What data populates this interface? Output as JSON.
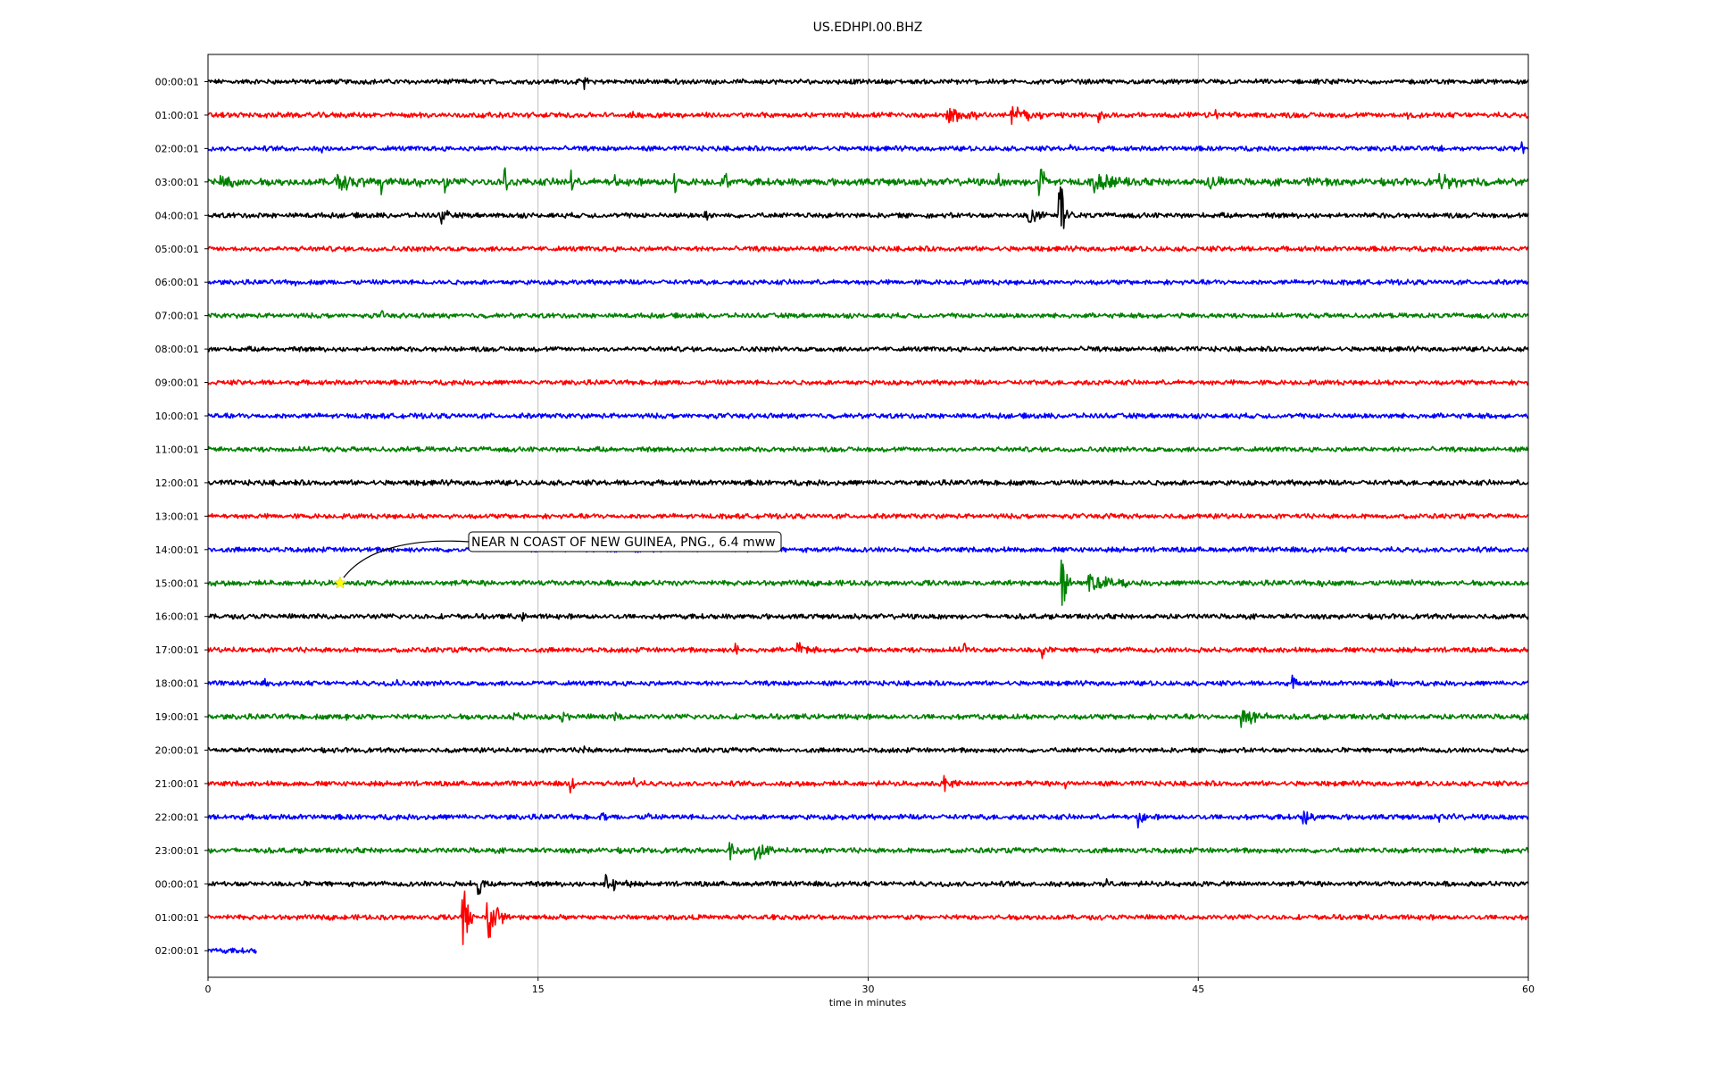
{
  "chart_data": {
    "type": "line",
    "title": "US.EDHPI.00.BHZ",
    "xlabel": "time in minutes",
    "ylabel": "",
    "xlim": [
      0,
      60
    ],
    "xticks": [
      {
        "value": 0,
        "label": "0"
      },
      {
        "value": 15,
        "label": "15"
      },
      {
        "value": 30,
        "label": "30"
      },
      {
        "value": 45,
        "label": "45"
      },
      {
        "value": 60,
        "label": "60"
      }
    ],
    "grid": "vertical",
    "legend": "none",
    "series": [
      {
        "label": "00:00:01",
        "color": "#000000",
        "end_minute": 60,
        "noise": 2.2,
        "events": [
          {
            "t": 17.1,
            "amp": 12,
            "dur": 0.3
          }
        ]
      },
      {
        "label": "01:00:01",
        "color": "#ff0000",
        "end_minute": 60,
        "noise": 2.4,
        "events": [
          {
            "t": 33.5,
            "amp": 10,
            "dur": 2.0
          },
          {
            "t": 36.5,
            "amp": 10,
            "dur": 1.6
          },
          {
            "t": 40.5,
            "amp": 9,
            "dur": 0.4
          },
          {
            "t": 45.7,
            "amp": 7,
            "dur": 0.3
          },
          {
            "t": 19.2,
            "amp": 4,
            "dur": 0.2
          },
          {
            "t": 54.5,
            "amp": 4,
            "dur": 0.2
          }
        ]
      },
      {
        "label": "02:00:01",
        "color": "#0000ff",
        "end_minute": 60,
        "noise": 2.2,
        "events": [
          {
            "t": 5.2,
            "amp": 5,
            "dur": 0.3
          },
          {
            "t": 39.2,
            "amp": 4,
            "dur": 0.2
          },
          {
            "t": 56.0,
            "amp": 4,
            "dur": 0.5
          },
          {
            "t": 59.7,
            "amp": 9,
            "dur": 0.3
          }
        ]
      },
      {
        "label": "03:00:01",
        "color": "#008000",
        "end_minute": 60,
        "noise": 3.2,
        "events": [
          {
            "t": 0.6,
            "amp": 9,
            "dur": 1.4
          },
          {
            "t": 5.8,
            "amp": 10,
            "dur": 2.4
          },
          {
            "t": 7.9,
            "amp": 14,
            "dur": 0.3
          },
          {
            "t": 9.5,
            "amp": 24,
            "dur": 0.1
          },
          {
            "t": 10.8,
            "amp": 22,
            "dur": 0.1
          },
          {
            "t": 13.5,
            "amp": 20,
            "dur": 0.1
          },
          {
            "t": 16.5,
            "amp": 22,
            "dur": 0.1
          },
          {
            "t": 18.5,
            "amp": 22,
            "dur": 0.1
          },
          {
            "t": 21.2,
            "amp": 22,
            "dur": 0.1
          },
          {
            "t": 23.5,
            "amp": 22,
            "dur": 0.1
          },
          {
            "t": 35.9,
            "amp": 22,
            "dur": 0.1
          },
          {
            "t": 37.8,
            "amp": 25,
            "dur": 0.4
          },
          {
            "t": 40.2,
            "amp": 14,
            "dur": 1.8
          },
          {
            "t": 45.5,
            "amp": 9,
            "dur": 1.0
          },
          {
            "t": 50.0,
            "amp": 8,
            "dur": 1.0
          },
          {
            "t": 56.0,
            "amp": 8,
            "dur": 2.0
          }
        ]
      },
      {
        "label": "04:00:01",
        "color": "#000000",
        "end_minute": 60,
        "noise": 2.3,
        "events": [
          {
            "t": 10.6,
            "amp": 9,
            "dur": 0.5
          },
          {
            "t": 22.6,
            "amp": 9,
            "dur": 0.3
          },
          {
            "t": 37.3,
            "amp": 12,
            "dur": 0.8
          },
          {
            "t": 38.7,
            "amp": 42,
            "dur": 0.6
          }
        ]
      },
      {
        "label": "05:00:01",
        "color": "#ff0000",
        "end_minute": 60,
        "noise": 2.3,
        "events": []
      },
      {
        "label": "06:00:01",
        "color": "#0000ff",
        "end_minute": 60,
        "noise": 2.2,
        "events": [
          {
            "t": 4.0,
            "amp": 4,
            "dur": 0.2
          }
        ]
      },
      {
        "label": "07:00:01",
        "color": "#008000",
        "end_minute": 60,
        "noise": 2.2,
        "events": [
          {
            "t": 7.9,
            "amp": 4,
            "dur": 0.2
          }
        ]
      },
      {
        "label": "08:00:01",
        "color": "#000000",
        "end_minute": 60,
        "noise": 2.2,
        "events": [
          {
            "t": 30.0,
            "amp": 4,
            "dur": 0.2
          },
          {
            "t": 40.0,
            "amp": 3,
            "dur": 0.2
          }
        ]
      },
      {
        "label": "09:00:01",
        "color": "#ff0000",
        "end_minute": 60,
        "noise": 2.2,
        "events": []
      },
      {
        "label": "10:00:01",
        "color": "#0000ff",
        "end_minute": 60,
        "noise": 2.3,
        "events": []
      },
      {
        "label": "11:00:01",
        "color": "#008000",
        "end_minute": 60,
        "noise": 2.2,
        "events": []
      },
      {
        "label": "12:00:01",
        "color": "#000000",
        "end_minute": 60,
        "noise": 2.4,
        "events": []
      },
      {
        "label": "13:00:01",
        "color": "#ff0000",
        "end_minute": 60,
        "noise": 2.2,
        "events": [
          {
            "t": 41.0,
            "amp": 4,
            "dur": 0.2
          }
        ]
      },
      {
        "label": "14:00:01",
        "color": "#0000ff",
        "end_minute": 60,
        "noise": 2.3,
        "events": []
      },
      {
        "label": "15:00:01",
        "color": "#008000",
        "end_minute": 60,
        "noise": 2.4,
        "events": [
          {
            "t": 38.8,
            "amp": 40,
            "dur": 0.4
          },
          {
            "t": 40.0,
            "amp": 12,
            "dur": 2.0
          },
          {
            "t": 50.6,
            "amp": 6,
            "dur": 0.3
          },
          {
            "t": 54.5,
            "amp": 8,
            "dur": 0.3
          }
        ]
      },
      {
        "label": "16:00:01",
        "color": "#000000",
        "end_minute": 60,
        "noise": 2.3,
        "events": [
          {
            "t": 14.3,
            "amp": 7,
            "dur": 0.3
          }
        ]
      },
      {
        "label": "17:00:01",
        "color": "#ff0000",
        "end_minute": 60,
        "noise": 2.3,
        "events": [
          {
            "t": 24.0,
            "amp": 9,
            "dur": 0.3
          },
          {
            "t": 26.8,
            "amp": 10,
            "dur": 0.8
          },
          {
            "t": 34.4,
            "amp": 11,
            "dur": 0.2
          },
          {
            "t": 37.9,
            "amp": 12,
            "dur": 0.3
          }
        ]
      },
      {
        "label": "18:00:01",
        "color": "#0000ff",
        "end_minute": 60,
        "noise": 2.2,
        "events": [
          {
            "t": 2.6,
            "amp": 9,
            "dur": 0.3
          },
          {
            "t": 8.6,
            "amp": 5,
            "dur": 0.2
          },
          {
            "t": 49.3,
            "amp": 10,
            "dur": 0.3
          },
          {
            "t": 53.8,
            "amp": 7,
            "dur": 0.2
          }
        ]
      },
      {
        "label": "19:00:01",
        "color": "#008000",
        "end_minute": 60,
        "noise": 2.4,
        "events": [
          {
            "t": 6.2,
            "amp": 6,
            "dur": 0.3
          },
          {
            "t": 13.9,
            "amp": 9,
            "dur": 0.3
          },
          {
            "t": 16.0,
            "amp": 9,
            "dur": 0.4
          },
          {
            "t": 18.5,
            "amp": 7,
            "dur": 0.3
          },
          {
            "t": 35.0,
            "amp": 4,
            "dur": 0.2
          },
          {
            "t": 47.0,
            "amp": 12,
            "dur": 1.8
          }
        ]
      },
      {
        "label": "20:00:01",
        "color": "#000000",
        "end_minute": 60,
        "noise": 2.2,
        "events": [
          {
            "t": 17.1,
            "amp": 9,
            "dur": 0.2
          }
        ]
      },
      {
        "label": "21:00:01",
        "color": "#ff0000",
        "end_minute": 60,
        "noise": 2.3,
        "events": [
          {
            "t": 16.5,
            "amp": 10,
            "dur": 0.3
          },
          {
            "t": 19.3,
            "amp": 7,
            "dur": 0.4
          },
          {
            "t": 33.5,
            "amp": 9,
            "dur": 0.8
          },
          {
            "t": 39.0,
            "amp": 7,
            "dur": 0.3
          }
        ]
      },
      {
        "label": "22:00:01",
        "color": "#0000ff",
        "end_minute": 60,
        "noise": 2.4,
        "events": [
          {
            "t": 17.9,
            "amp": 8,
            "dur": 0.4
          },
          {
            "t": 20.0,
            "amp": 4,
            "dur": 0.3
          },
          {
            "t": 42.3,
            "amp": 14,
            "dur": 0.3
          },
          {
            "t": 49.8,
            "amp": 11,
            "dur": 0.5
          },
          {
            "t": 56.0,
            "amp": 5,
            "dur": 0.8
          }
        ]
      },
      {
        "label": "23:00:01",
        "color": "#008000",
        "end_minute": 60,
        "noise": 2.4,
        "events": [
          {
            "t": 23.7,
            "amp": 14,
            "dur": 0.5
          },
          {
            "t": 24.9,
            "amp": 16,
            "dur": 0.8
          }
        ]
      },
      {
        "label": "00:00:01",
        "color": "#000000",
        "end_minute": 60,
        "noise": 2.3,
        "events": [
          {
            "t": 11.9,
            "amp": 10,
            "dur": 0.3
          },
          {
            "t": 12.3,
            "amp": 20,
            "dur": 0.3
          },
          {
            "t": 18.0,
            "amp": 12,
            "dur": 1.2
          },
          {
            "t": 40.7,
            "amp": 9,
            "dur": 0.6
          }
        ]
      },
      {
        "label": "01:00:01",
        "color": "#ff0000",
        "end_minute": 60,
        "noise": 2.3,
        "events": [
          {
            "t": 11.6,
            "amp": 40,
            "dur": 0.5
          },
          {
            "t": 12.7,
            "amp": 35,
            "dur": 0.8
          }
        ]
      },
      {
        "label": "02:00:01",
        "color": "#0000ff",
        "end_minute": 2.2,
        "noise": 2.4,
        "events": []
      }
    ],
    "annotations": [
      {
        "text": "NEAR N COAST OF NEW GUINEA, PNG., 6.4 mww",
        "row": 15,
        "t": 6.0,
        "marker": "star",
        "marker_color": "#ffff00"
      }
    ]
  }
}
